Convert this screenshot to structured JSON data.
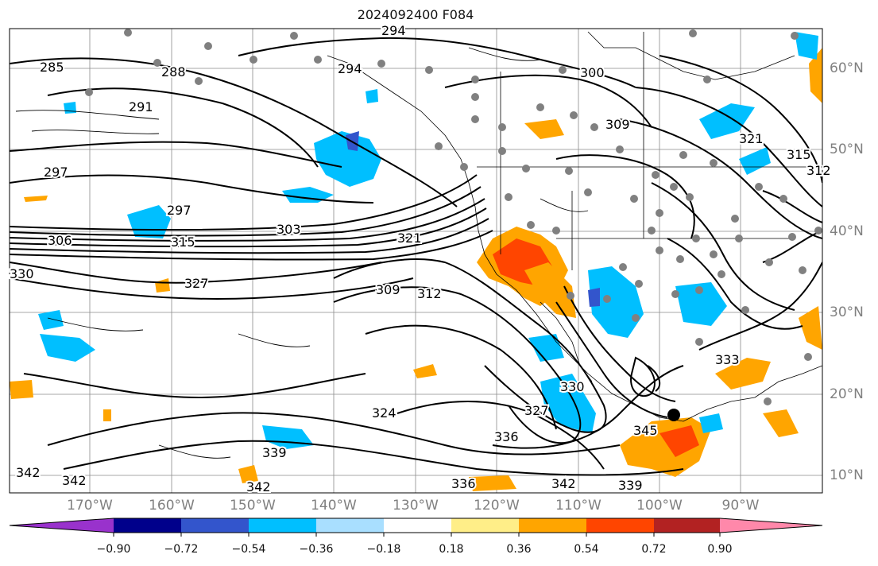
{
  "title": "2024092400 F084",
  "lat_labels": [
    "60°N",
    "50°N",
    "40°N",
    "30°N",
    "20°N",
    "10°N"
  ],
  "lon_labels": [
    "170°W",
    "160°W",
    "150°W",
    "140°W",
    "130°W",
    "120°W",
    "110°W",
    "100°W",
    "90°W"
  ],
  "colorbar": {
    "ticks": [
      "−0.90",
      "−0.72",
      "−0.54",
      "−0.36",
      "−0.18",
      "0.18",
      "0.36",
      "0.54",
      "0.72",
      "0.90"
    ],
    "colors": [
      "#9932cc",
      "#00008b",
      "#3355cc",
      "#00bfff",
      "#a9dfff",
      "#ffffff",
      "#ffee88",
      "#ffa500",
      "#ff4500",
      "#b22222",
      "#ff88aa"
    ]
  },
  "contour_labels": [
    "285",
    "288",
    "291",
    "294",
    "294",
    "297",
    "297",
    "300",
    "303",
    "306",
    "309",
    "309",
    "312",
    "312",
    "315",
    "315",
    "321",
    "321",
    "324",
    "327",
    "327",
    "330",
    "330",
    "333",
    "336",
    "336",
    "339",
    "339",
    "342",
    "342",
    "342",
    "342",
    "345"
  ]
}
